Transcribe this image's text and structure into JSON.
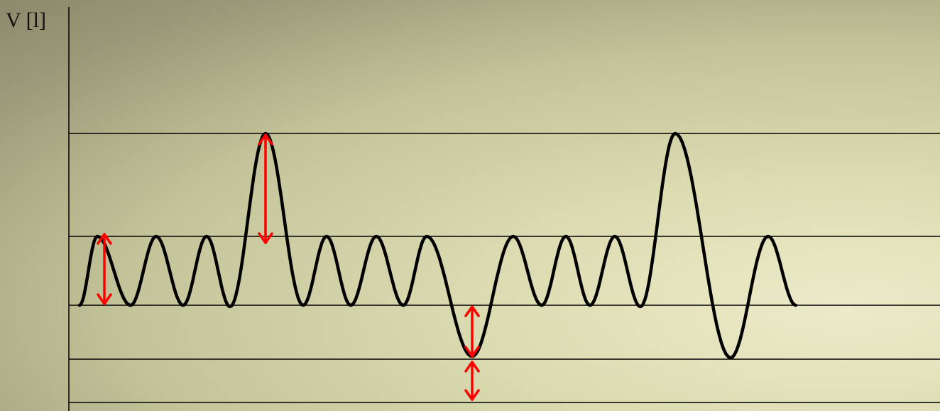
{
  "diagram": {
    "y_axis_label": "V [l]",
    "colors": {
      "curve": "#000000",
      "arrows": "#ff0000",
      "lines": "#000000"
    }
  }
}
